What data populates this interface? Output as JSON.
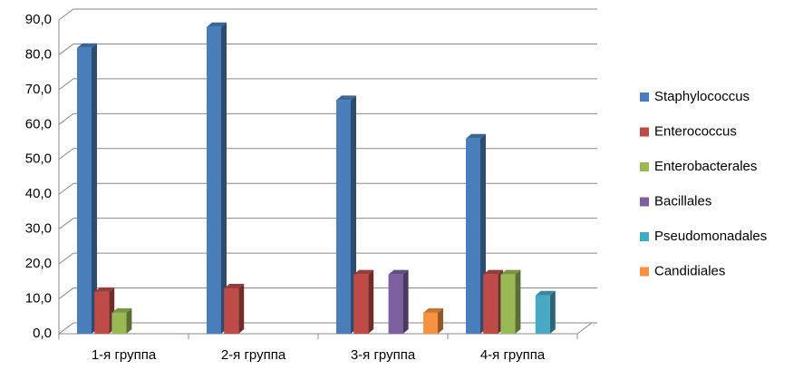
{
  "chart_data": {
    "type": "bar3d",
    "categories": [
      "1-я группа",
      "2-я группа",
      "3-я группа",
      "4-я группа"
    ],
    "series": [
      {
        "name": "Staphylococcus",
        "color": "#4a7ebb",
        "values": [
          82,
          88,
          67,
          56
        ]
      },
      {
        "name": "Enterococcus",
        "color": "#be4b48",
        "values": [
          12,
          13,
          17,
          17
        ]
      },
      {
        "name": "Enterobacterales",
        "color": "#98b954",
        "values": [
          6,
          null,
          null,
          17
        ]
      },
      {
        "name": "Bacillales",
        "color": "#7d60a0",
        "values": [
          null,
          null,
          17,
          null
        ]
      },
      {
        "name": "Pseudomonadales",
        "color": "#46aac5",
        "values": [
          null,
          null,
          null,
          11
        ]
      },
      {
        "name": "Candidiales",
        "color": "#f69240",
        "values": [
          null,
          null,
          6,
          null
        ]
      }
    ],
    "ylim": [
      0,
      90
    ],
    "yticks": [
      {
        "value": 0,
        "label": "0,0"
      },
      {
        "value": 10,
        "label": "10,0"
      },
      {
        "value": 20,
        "label": "20,0"
      },
      {
        "value": 30,
        "label": "30,0"
      },
      {
        "value": 40,
        "label": "40,0"
      },
      {
        "value": 50,
        "label": "50,0"
      },
      {
        "value": 60,
        "label": "60,0"
      },
      {
        "value": 70,
        "label": "70,0"
      },
      {
        "value": 80,
        "label": "80,0"
      },
      {
        "value": 90,
        "label": "90,0"
      }
    ],
    "grid": true,
    "legend": "right"
  }
}
